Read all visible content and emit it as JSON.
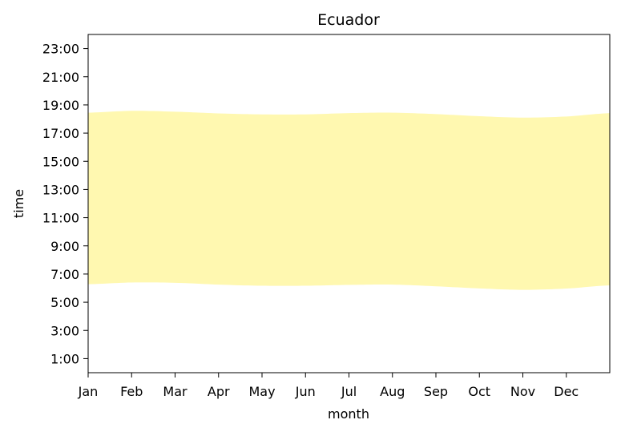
{
  "chart_data": {
    "type": "area",
    "title": "Ecuador",
    "xlabel": "month",
    "ylabel": "time",
    "x_ticks": [
      "Jan",
      "Feb",
      "Mar",
      "Apr",
      "May",
      "Jun",
      "Jul",
      "Aug",
      "Sep",
      "Oct",
      "Nov",
      "Dec"
    ],
    "xlim": [
      0,
      12
    ],
    "ylim": [
      0,
      24
    ],
    "y_ticks": [
      1,
      3,
      5,
      7,
      9,
      11,
      13,
      15,
      17,
      19,
      21,
      23
    ],
    "y_tick_labels": [
      "1:00",
      "3:00",
      "5:00",
      "7:00",
      "9:00",
      "11:00",
      "13:00",
      "15:00",
      "17:00",
      "19:00",
      "21:00",
      "23:00"
    ],
    "series": [
      {
        "x": [
          0,
          1,
          2,
          3,
          4,
          5,
          6,
          7,
          8,
          9,
          10,
          11,
          12
        ],
        "sunrise": [
          6.28,
          6.4,
          6.38,
          6.25,
          6.17,
          6.17,
          6.23,
          6.25,
          6.13,
          5.98,
          5.88,
          5.97,
          6.2
        ],
        "sunset": [
          18.45,
          18.58,
          18.52,
          18.4,
          18.33,
          18.33,
          18.42,
          18.45,
          18.35,
          18.2,
          18.1,
          18.18,
          18.42
        ]
      }
    ],
    "grid": false,
    "fill_color": "#fff8b0"
  }
}
